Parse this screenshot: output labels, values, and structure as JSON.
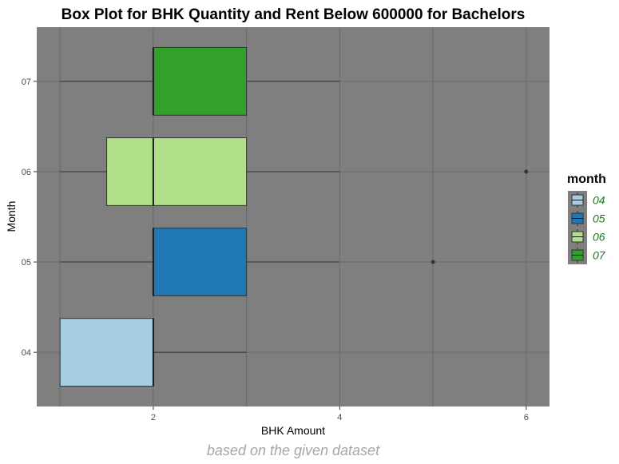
{
  "chart_data": {
    "type": "boxplot",
    "orientation": "horizontal",
    "title": "Box Plot for BHK Quantity and Rent Below 600000 for Bachelors",
    "caption": "based on the given dataset",
    "xlabel": "BHK Amount",
    "ylabel": "Month",
    "xlim": [
      0.75,
      6.25
    ],
    "x_ticks": [
      "2",
      "4",
      "6"
    ],
    "x_tick_values": [
      2,
      4,
      6
    ],
    "x_minor_values": [
      1,
      3,
      5
    ],
    "categories": [
      "04",
      "05",
      "06",
      "07"
    ],
    "grid": true,
    "legend": {
      "title": "month",
      "position": "right",
      "entries": [
        "04",
        "05",
        "06",
        "07"
      ]
    },
    "series": [
      {
        "category": "04",
        "min": 1,
        "q1": 1,
        "median": 2,
        "q3": 2,
        "max": 3,
        "outliers": [],
        "color": "#a6cee3"
      },
      {
        "category": "05",
        "min": 1,
        "q1": 2,
        "median": 2,
        "q3": 3,
        "max": 4,
        "outliers": [
          5
        ],
        "color": "#1f78b4"
      },
      {
        "category": "06",
        "min": 1,
        "q1": 1.5,
        "median": 2,
        "q3": 3,
        "max": 4,
        "outliers": [
          6
        ],
        "color": "#b2df8a"
      },
      {
        "category": "07",
        "min": 1,
        "q1": 2,
        "median": 2,
        "q3": 3,
        "max": 4,
        "outliers": [],
        "color": "#33a02c"
      }
    ],
    "colors": {
      "panel_background": "#7f7f7f",
      "grid": "#6a6a6a",
      "title_text": "#000000",
      "axis_text": "#4d4d4d",
      "legend_label_text": "#1a7a1a",
      "caption_text": "#a6a6a6"
    }
  }
}
